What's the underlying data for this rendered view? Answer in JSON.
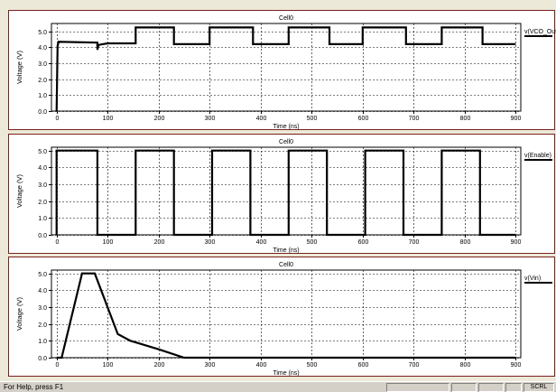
{
  "statusbar": {
    "help_text": "For Help, press F1",
    "scrl_label": "SCRL"
  },
  "chart_data": [
    {
      "type": "line",
      "title": "Cell0",
      "xlabel": "Time (ns)",
      "ylabel": "Voltage (V)",
      "xlim": [
        -10,
        910
      ],
      "ylim": [
        0,
        5.5
      ],
      "x_ticks": [
        0,
        100,
        200,
        300,
        400,
        500,
        600,
        700,
        800,
        900
      ],
      "y_ticks": [
        0.0,
        1.0,
        2.0,
        3.0,
        4.0,
        5.0
      ],
      "x_tick_labels": [
        "0",
        "100",
        "200",
        "300",
        "400",
        "500",
        "600",
        "700",
        "800",
        "900"
      ],
      "y_tick_labels": [
        "0.0",
        "1.0",
        "2.0",
        "3.0",
        "4.0",
        "5.0"
      ],
      "grid": true,
      "legend_position": "right",
      "series": [
        {
          "name": "v(VCO_Out)",
          "color": "#000000",
          "x": [
            0,
            2,
            4,
            80,
            80,
            82,
            90,
            100,
            155,
            155,
            230,
            230,
            300,
            300,
            385,
            385,
            455,
            455,
            535,
            535,
            600,
            600,
            685,
            685,
            755,
            755,
            835,
            835,
            900
          ],
          "y": [
            0.0,
            4.1,
            4.35,
            4.3,
            3.85,
            4.15,
            4.2,
            4.25,
            4.25,
            5.25,
            5.25,
            4.2,
            4.2,
            5.25,
            5.25,
            4.2,
            4.2,
            5.25,
            5.25,
            4.2,
            4.2,
            5.25,
            5.25,
            4.2,
            4.2,
            5.25,
            5.25,
            4.2,
            4.2
          ]
        }
      ]
    },
    {
      "type": "line",
      "title": "Cell0",
      "xlabel": "Time (ns)",
      "ylabel": "Voltage (V)",
      "xlim": [
        -10,
        910
      ],
      "ylim": [
        0,
        5.2
      ],
      "x_ticks": [
        0,
        100,
        200,
        300,
        400,
        500,
        600,
        700,
        800,
        900
      ],
      "y_ticks": [
        0.0,
        1.0,
        2.0,
        3.0,
        4.0,
        5.0
      ],
      "x_tick_labels": [
        "0",
        "100",
        "200",
        "300",
        "400",
        "500",
        "600",
        "700",
        "800",
        "900"
      ],
      "y_tick_labels": [
        "0.0",
        "1.0",
        "2.0",
        "3.0",
        "4.0",
        "5.0"
      ],
      "grid": true,
      "legend_position": "right",
      "series": [
        {
          "name": "v(Enable)",
          "color": "#000000",
          "x": [
            0,
            0,
            80,
            80,
            155,
            155,
            230,
            230,
            305,
            305,
            380,
            380,
            455,
            455,
            530,
            530,
            605,
            605,
            680,
            680,
            755,
            755,
            830,
            830,
            900
          ],
          "y": [
            0.0,
            5.0,
            5.0,
            0.0,
            0.0,
            5.0,
            5.0,
            0.0,
            0.0,
            5.0,
            5.0,
            0.0,
            0.0,
            5.0,
            5.0,
            0.0,
            0.0,
            5.0,
            5.0,
            0.0,
            0.0,
            5.0,
            5.0,
            0.0,
            0.0
          ]
        }
      ]
    },
    {
      "type": "line",
      "title": "Cell0",
      "xlabel": "Time (ns)",
      "ylabel": "Voltage (V)",
      "xlim": [
        -10,
        910
      ],
      "ylim": [
        0,
        5.2
      ],
      "x_ticks": [
        0,
        100,
        200,
        300,
        400,
        500,
        600,
        700,
        800,
        900
      ],
      "y_ticks": [
        0.0,
        1.0,
        2.0,
        3.0,
        4.0,
        5.0
      ],
      "x_tick_labels": [
        "0",
        "100",
        "200",
        "300",
        "400",
        "500",
        "600",
        "700",
        "800",
        "900"
      ],
      "y_tick_labels": [
        "0.0",
        "1.0",
        "2.0",
        "3.0",
        "4.0",
        "5.0"
      ],
      "grid": true,
      "legend_position": "right",
      "series": [
        {
          "name": "v(Vin)",
          "color": "#000000",
          "x": [
            0,
            10,
            50,
            75,
            120,
            145,
            200,
            250,
            900
          ],
          "y": [
            0.0,
            0.0,
            5.0,
            5.0,
            1.4,
            1.0,
            0.5,
            0.0,
            0.0
          ]
        }
      ]
    }
  ]
}
